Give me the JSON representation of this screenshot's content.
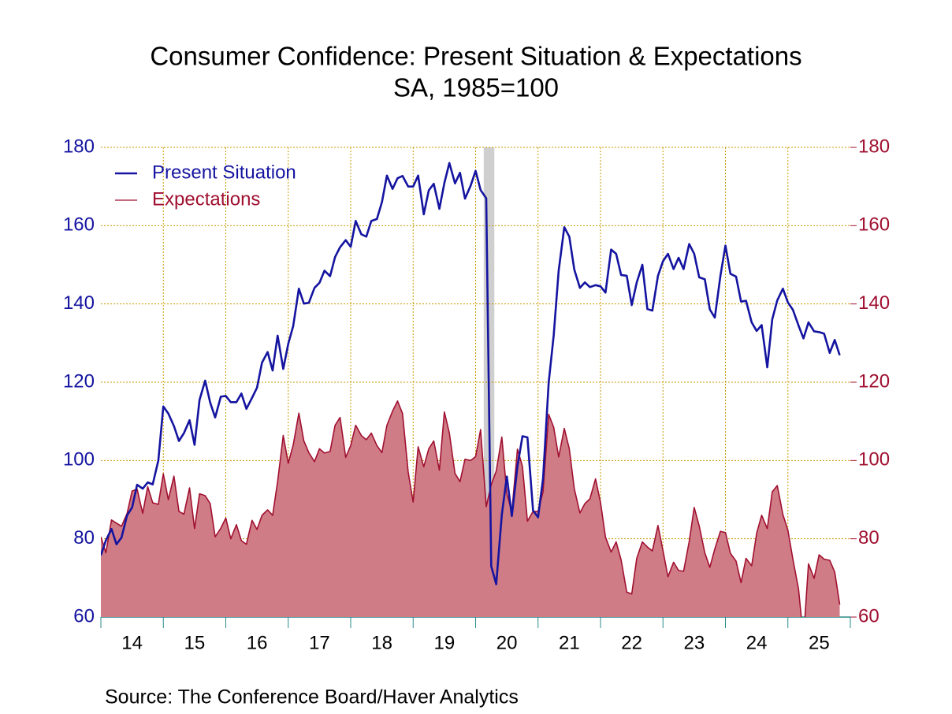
{
  "chart_data": {
    "type": "line",
    "title": "Consumer Confidence: Present Situation & Expectations",
    "subtitle": "SA, 1985=100",
    "source": "Source:  The Conference Board/Haver Analytics",
    "xlim": [
      14,
      26
    ],
    "xticks": [
      {
        "value": 14,
        "label": "14"
      },
      {
        "value": 15,
        "label": "15"
      },
      {
        "value": 16,
        "label": "16"
      },
      {
        "value": 17,
        "label": "17"
      },
      {
        "value": 18,
        "label": "18"
      },
      {
        "value": 19,
        "label": "19"
      },
      {
        "value": 20,
        "label": "20"
      },
      {
        "value": 21,
        "label": "21"
      },
      {
        "value": 22,
        "label": "22"
      },
      {
        "value": 23,
        "label": "23"
      },
      {
        "value": 24,
        "label": "24"
      },
      {
        "value": 25,
        "label": "25"
      }
    ],
    "ylim": [
      60,
      180
    ],
    "yticks": [
      60,
      80,
      100,
      120,
      140,
      160,
      180
    ],
    "y2lim": [
      60,
      180
    ],
    "y2ticks": [
      60,
      80,
      100,
      120,
      140,
      160,
      180
    ],
    "grid": true,
    "legend": "top-left",
    "shaded_periods": [
      [
        20.13,
        20.3
      ]
    ],
    "x": [
      14,
      14.08,
      14.17,
      14.25,
      14.33,
      14.42,
      14.5,
      14.58,
      14.67,
      14.75,
      14.83,
      14.92,
      15,
      15.08,
      15.17,
      15.25,
      15.33,
      15.42,
      15.5,
      15.58,
      15.67,
      15.75,
      15.83,
      15.92,
      16,
      16.08,
      16.17,
      16.25,
      16.33,
      16.42,
      16.5,
      16.58,
      16.67,
      16.75,
      16.83,
      16.92,
      17,
      17.08,
      17.17,
      17.25,
      17.33,
      17.42,
      17.5,
      17.58,
      17.67,
      17.75,
      17.83,
      17.92,
      18,
      18.08,
      18.17,
      18.25,
      18.33,
      18.42,
      18.5,
      18.58,
      18.67,
      18.75,
      18.83,
      18.92,
      19,
      19.08,
      19.17,
      19.25,
      19.33,
      19.42,
      19.5,
      19.58,
      19.67,
      19.75,
      19.83,
      19.92,
      20,
      20.08,
      20.17,
      20.25,
      20.33,
      20.42,
      20.5,
      20.58,
      20.67,
      20.75,
      20.83,
      20.92,
      21,
      21.08,
      21.17,
      21.25,
      21.33,
      21.42,
      21.5,
      21.58,
      21.67,
      21.75,
      21.83,
      21.92,
      22,
      22.08,
      22.17,
      22.25,
      22.33,
      22.42,
      22.5,
      22.58,
      22.67,
      22.75,
      22.83,
      22.92,
      23,
      23.08,
      23.17,
      23.25,
      23.33,
      23.42,
      23.5,
      23.58,
      23.67,
      23.75,
      23.83,
      23.92,
      24,
      24.08,
      24.17,
      24.25,
      24.33,
      24.42,
      24.5,
      24.58,
      24.67,
      24.75,
      24.83,
      24.92,
      25,
      25.08,
      25.17,
      25.25,
      25.33,
      25.42,
      25.5,
      25.58,
      25.67,
      25.75,
      25.83
    ],
    "series": [
      {
        "name": "Present Situation",
        "color": "#1414a0",
        "values": [
          75.8,
          79.6,
          82.5,
          78.6,
          80.3,
          86.0,
          88.0,
          93.8,
          92.8,
          94.4,
          93.9,
          100.0,
          113.8,
          112.0,
          108.8,
          105.0,
          107.0,
          110.3,
          104.0,
          115.5,
          120.4,
          114.8,
          111.0,
          116.3,
          116.5,
          114.9,
          114.9,
          117.1,
          113.2,
          116.0,
          118.6,
          125.0,
          127.7,
          123.0,
          131.9,
          123.4,
          129.8,
          134.4,
          143.9,
          140.1,
          140.3,
          144.1,
          145.4,
          148.5,
          147.1,
          152.0,
          154.5,
          156.3,
          154.6,
          161.2,
          157.8,
          157.2,
          161.2,
          161.7,
          166.0,
          172.8,
          169.4,
          172.1,
          172.7,
          170.0,
          170.0,
          172.8,
          162.9,
          169.0,
          170.7,
          164.3,
          170.9,
          176.0,
          170.8,
          173.5,
          166.9,
          170.2,
          174.0,
          169.1,
          167.0,
          73.0,
          68.4,
          86.2,
          95.9,
          85.8,
          98.5,
          106.2,
          105.9,
          87.2,
          85.5,
          95.4,
          119.9,
          131.9,
          148.5,
          159.6,
          157.2,
          148.8,
          144.1,
          145.5,
          144.3,
          144.8,
          144.5,
          142.9,
          153.9,
          152.8,
          147.4,
          147.2,
          139.7,
          145.5,
          150.0,
          138.7,
          138.3,
          147.2,
          150.9,
          152.8,
          148.9,
          151.8,
          148.9,
          155.3,
          152.8,
          146.8,
          146.3,
          138.6,
          136.5,
          147.2,
          154.9,
          147.7,
          147.0,
          140.6,
          140.8,
          135.3,
          133.1,
          134.6,
          123.8,
          136.1,
          140.9,
          143.9,
          140.4,
          138.5,
          134.5,
          131.2,
          135.3,
          133.0,
          132.8,
          132.4,
          127.5,
          130.8,
          126.9
        ]
      },
      {
        "name": "Expectations",
        "color": "#a01030",
        "fill": "#d07c87",
        "axis": "y2",
        "values": [
          80.5,
          76.4,
          84.8,
          84.0,
          83.2,
          86.5,
          92.2,
          92.7,
          86.5,
          93.3,
          89.2,
          88.8,
          96.6,
          90.0,
          96.0,
          87.0,
          86.3,
          93.0,
          82.6,
          91.5,
          91.0,
          89.0,
          80.5,
          82.7,
          85.3,
          80.0,
          83.6,
          79.5,
          78.6,
          84.7,
          82.4,
          86.0,
          87.4,
          86.0,
          94.6,
          106.4,
          99.3,
          104.0,
          112.1,
          105.0,
          102.0,
          99.7,
          103.0,
          101.9,
          102.3,
          109.0,
          111.0,
          100.8,
          103.8,
          109.0,
          106.4,
          105.3,
          107.0,
          103.8,
          102.0,
          109.0,
          112.6,
          115.2,
          112.0,
          97.1,
          89.4,
          103.5,
          98.4,
          103.0,
          105.0,
          97.5,
          112.4,
          107.0,
          96.7,
          94.6,
          100.3,
          100.0,
          101.0,
          107.9,
          88.2,
          93.8,
          97.3,
          106.0,
          91.5,
          86.9,
          102.9,
          98.5,
          84.5,
          87.0,
          87.0,
          92.0,
          111.8,
          108.5,
          100.9,
          108.2,
          103.0,
          92.8,
          86.6,
          89.0,
          90.2,
          95.3,
          89.3,
          80.4,
          76.6,
          79.2,
          74.6,
          66.4,
          65.9,
          75.0,
          79.2,
          77.9,
          76.9,
          83.4,
          77.0,
          70.3,
          74.0,
          71.9,
          71.7,
          79.3,
          88.0,
          83.3,
          76.4,
          72.7,
          77.4,
          81.9,
          81.6,
          76.3,
          74.3,
          68.8,
          75.0,
          73.1,
          81.4,
          86.0,
          82.6,
          92.0,
          93.6,
          86.2,
          82.2,
          74.8,
          67.2,
          54.4,
          73.6,
          69.9,
          75.9,
          74.8,
          74.5,
          71.5,
          63.2
        ]
      }
    ]
  }
}
